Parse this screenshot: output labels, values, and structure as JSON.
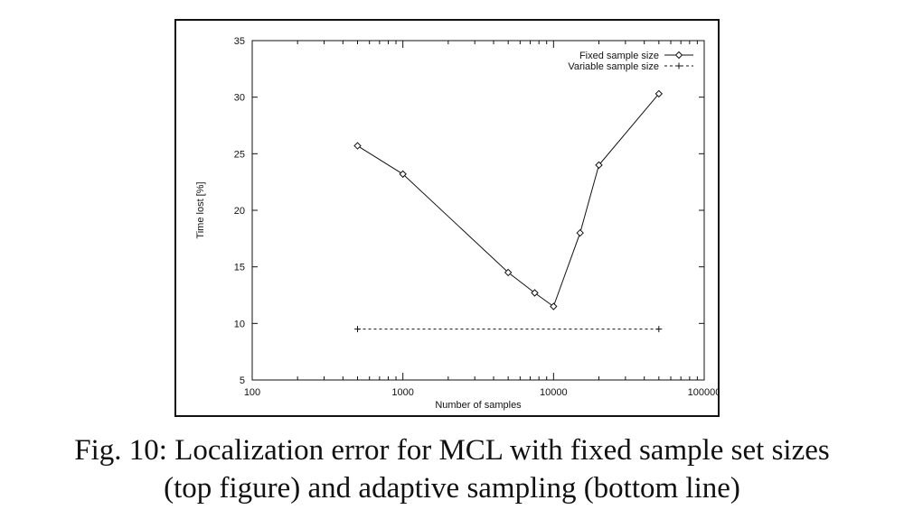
{
  "chart_data": {
    "type": "line",
    "xlabel": "Number of samples",
    "ylabel": "Time lost [%]",
    "xscale": "log",
    "xlim": [
      100,
      100000
    ],
    "ylim": [
      5,
      35
    ],
    "x_ticks": [
      100,
      1000,
      10000,
      100000
    ],
    "x_tick_labels": [
      "100",
      "1000",
      "10000",
      "100000"
    ],
    "y_ticks": [
      5,
      10,
      15,
      20,
      25,
      30,
      35
    ],
    "y_tick_labels": [
      "5",
      "10",
      "15",
      "20",
      "25",
      "30",
      "35"
    ],
    "grid": false,
    "legend_position": "top-right",
    "series": [
      {
        "name": "Fixed sample size",
        "style": "solid",
        "marker": "diamond",
        "color": "#111111",
        "x": [
          500,
          1000,
          5000,
          7500,
          10000,
          15000,
          20000,
          50000
        ],
        "y": [
          25.7,
          23.2,
          14.5,
          12.7,
          11.5,
          18.0,
          24.0,
          30.3
        ]
      },
      {
        "name": "Variable sample size",
        "style": "dashed",
        "marker": "plus",
        "color": "#111111",
        "x": [
          500,
          50000
        ],
        "y": [
          9.5,
          9.5
        ]
      }
    ]
  },
  "caption": {
    "line1": "Fig. 10: Localization error for MCL with fixed sample set sizes",
    "line2": "(top figure) and adaptive sampling (bottom line)"
  }
}
